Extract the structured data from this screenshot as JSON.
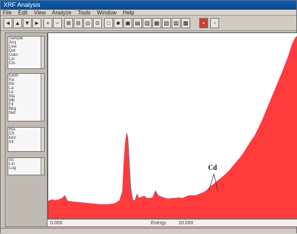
{
  "window": {
    "title": "XRF Analysis"
  },
  "menu": [
    "File",
    "Edit",
    "View",
    "Analyze",
    "Tools",
    "Window",
    "Help"
  ],
  "toolbar": {
    "buttons": [
      "◄",
      "▲",
      "▼",
      "►",
      "+",
      "−",
      "⊞",
      "⊟",
      "◎",
      "⊙",
      "□",
      "■",
      "▣",
      "▤",
      "▥",
      "▦",
      "▧",
      "▨",
      "▩",
      "▪",
      "▫"
    ]
  },
  "sidebar": {
    "panel1": [
      "Sample",
      "Acq",
      "Live",
      "Det",
      "Gain",
      "Lvl",
      "Cts"
    ],
    "panel2": [
      "Elem",
      "Ka",
      "Kb",
      "La",
      "Lb",
      "Ma",
      "Mb",
      "Fit",
      "Bkg",
      "Net"
    ],
    "panel3": [
      "Roi",
      "Ch",
      "keV",
      "Int"
    ],
    "panel4": [
      "Sc",
      "Lin",
      "Log"
    ]
  },
  "plot": {
    "annotation_label": "Cd",
    "fill_color": "#ff3b3b",
    "background": "#ffffff"
  },
  "status": {
    "left": "0.000",
    "mid": "Energy",
    "right": "20.000"
  }
}
